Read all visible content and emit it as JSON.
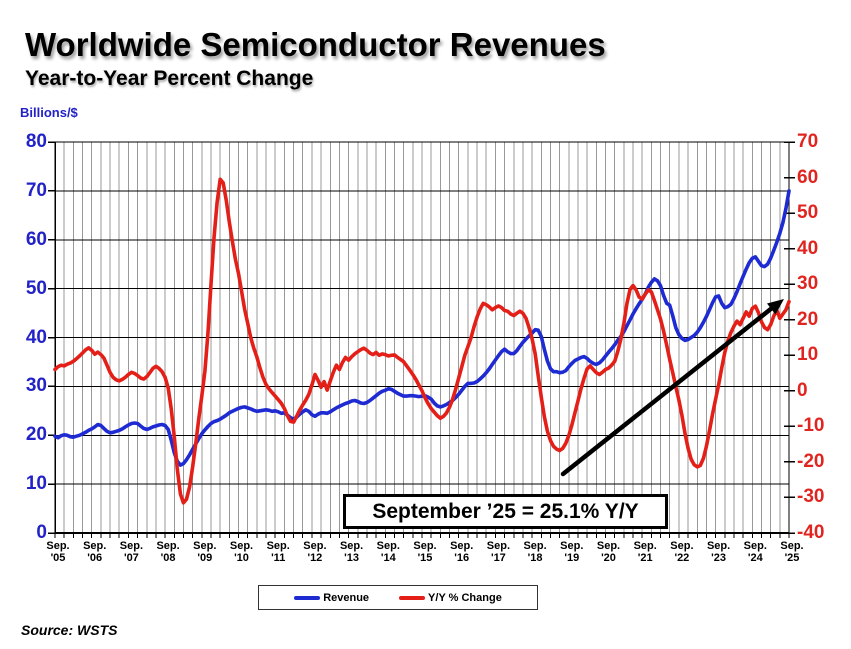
{
  "title": "Worldwide Semiconductor Revenues",
  "subtitle": "Year-to-Year Percent Change",
  "source": "Source: WSTS",
  "left_axis": {
    "label": "Billions/$",
    "color": "#2222c8",
    "ticks": [
      80,
      70,
      60,
      50,
      40,
      30,
      20,
      10,
      0
    ]
  },
  "right_axis": {
    "color": "#e02520",
    "ticks": [
      70,
      60,
      50,
      40,
      30,
      20,
      10,
      0,
      -10,
      -20,
      -30,
      -40
    ]
  },
  "x_axis": {
    "month_label": "Sep.",
    "years": [
      "'05",
      "'06",
      "'07",
      "'08",
      "'09",
      "'10",
      "'11",
      "'12",
      "'13",
      "'14",
      "'15",
      "'16",
      "'17",
      "'18",
      "'19",
      "'20",
      "'21",
      "'22",
      "'23",
      "'24",
      "'25"
    ]
  },
  "annotation": {
    "text": "September ’25 = 25.1% Y/Y"
  },
  "legend": {
    "items": [
      {
        "label": "Revenue",
        "color": "#1e2bd2"
      },
      {
        "label": "Y/Y % Change",
        "color": "#e41f18"
      }
    ]
  },
  "colors": {
    "grid_vertical": "#999999",
    "grid_horizontal": "#000000",
    "arrow": "#000000"
  },
  "chart_data": {
    "type": "line",
    "title": "Worldwide Semiconductor Revenues",
    "subtitle": "Year-to-Year Percent Change",
    "frequency": "monthly",
    "x_start": "2005-09",
    "x_end": "2025-09",
    "left_axis": {
      "label": "Billions/$",
      "range": [
        0,
        80
      ],
      "tick_step": 10
    },
    "right_axis": {
      "label": "Y/Y % Change",
      "range": [
        -40,
        70
      ],
      "tick_step": 10
    },
    "grid": {
      "horizontal": "every 10 (left scale)",
      "vertical": "quarterly"
    },
    "legend_position": "bottom-center",
    "annotations": [
      {
        "type": "callout-box",
        "text": "September ’25 = 25.1% Y/Y"
      },
      {
        "type": "arrow",
        "points_to": "final Y/Y value, Sep 2025 = 25.1%"
      }
    ],
    "series": [
      {
        "name": "Revenue",
        "axis": "left",
        "units": "US$ billions/month",
        "color": "#1e2bd2",
        "values": [
          19.8,
          19.5,
          19.9,
          20.1,
          20.0,
          19.7,
          19.6,
          19.8,
          20.0,
          20.3,
          20.6,
          21.0,
          21.3,
          21.7,
          22.2,
          22.0,
          21.4,
          20.8,
          20.5,
          20.6,
          20.8,
          21.0,
          21.3,
          21.7,
          22.1,
          22.4,
          22.5,
          22.4,
          21.9,
          21.4,
          21.2,
          21.4,
          21.7,
          21.9,
          22.1,
          22.2,
          22.0,
          21.2,
          19.0,
          16.4,
          14.7,
          13.9,
          14.2,
          15.0,
          16.0,
          17.1,
          18.2,
          19.3,
          20.3,
          21.1,
          21.8,
          22.4,
          22.8,
          23.0,
          23.3,
          23.7,
          24.1,
          24.6,
          24.9,
          25.2,
          25.5,
          25.7,
          25.8,
          25.6,
          25.4,
          25.1,
          24.9,
          25.0,
          25.1,
          25.2,
          25.1,
          24.9,
          25.0,
          24.8,
          24.5,
          24.6,
          24.1,
          23.6,
          23.3,
          23.7,
          24.3,
          24.8,
          25.2,
          24.9,
          24.2,
          23.9,
          24.3,
          24.6,
          24.6,
          24.5,
          24.8,
          25.2,
          25.6,
          25.9,
          26.2,
          26.5,
          26.7,
          27.0,
          27.1,
          26.9,
          26.6,
          26.5,
          26.7,
          27.1,
          27.6,
          28.1,
          28.6,
          29.0,
          29.2,
          29.5,
          29.4,
          29.0,
          28.6,
          28.3,
          28.0,
          28.0,
          28.1,
          28.1,
          28.0,
          27.9,
          28.0,
          28.1,
          27.8,
          27.4,
          26.6,
          26.0,
          25.8,
          26.0,
          26.3,
          26.7,
          27.1,
          27.7,
          28.4,
          29.2,
          30.0,
          30.6,
          30.6,
          30.7,
          31.0,
          31.5,
          32.1,
          32.8,
          33.6,
          34.5,
          35.4,
          36.3,
          37.1,
          37.6,
          37.1,
          36.7,
          36.7,
          37.3,
          38.2,
          39.0,
          39.7,
          40.3,
          40.9,
          41.6,
          41.5,
          40.2,
          37.6,
          35.2,
          33.6,
          33.0,
          33.0,
          32.8,
          32.9,
          33.2,
          34.0,
          34.7,
          35.3,
          35.6,
          35.9,
          36.1,
          35.7,
          35.1,
          34.7,
          34.5,
          34.8,
          35.4,
          36.2,
          37.0,
          37.7,
          38.5,
          39.4,
          40.2,
          41.2,
          42.4,
          43.6,
          44.8,
          45.9,
          46.9,
          47.8,
          48.9,
          50.3,
          51.3,
          52.0,
          51.6,
          50.6,
          48.6,
          47.0,
          46.6,
          44.4,
          42.0,
          40.6,
          39.8,
          39.4,
          39.6,
          40.0,
          40.4,
          41.1,
          42.0,
          43.1,
          44.3,
          45.7,
          47.1,
          48.3,
          48.5,
          47.0,
          46.1,
          46.3,
          46.8,
          48.0,
          49.4,
          51.0,
          52.5,
          54.0,
          55.3,
          56.2,
          56.5,
          55.6,
          54.7,
          54.5,
          55.0,
          56.2,
          57.8,
          59.5,
          61.3,
          63.5,
          66.4,
          70.0
        ]
      },
      {
        "name": "Y/Y % Change",
        "axis": "right",
        "units": "percent",
        "color": "#e41f18",
        "values": [
          6.0,
          6.8,
          7.2,
          7.0,
          7.5,
          7.8,
          8.3,
          9.0,
          9.8,
          10.6,
          11.5,
          12.1,
          11.4,
          10.3,
          10.9,
          10.2,
          9.2,
          7.2,
          5.2,
          3.8,
          3.1,
          2.8,
          3.2,
          3.8,
          4.6,
          5.2,
          4.9,
          4.3,
          3.6,
          3.3,
          4.0,
          5.1,
          6.3,
          6.9,
          6.3,
          5.4,
          3.8,
          0.8,
          -5.0,
          -13.0,
          -22.0,
          -29.0,
          -31.5,
          -30.5,
          -27.0,
          -21.5,
          -15.0,
          -8.0,
          -1.5,
          5.5,
          16.0,
          30.0,
          43.0,
          53.0,
          59.5,
          58.5,
          53.5,
          47.5,
          42.0,
          37.0,
          33.0,
          28.0,
          23.0,
          19.0,
          15.0,
          12.0,
          9.5,
          6.5,
          3.8,
          1.8,
          0.5,
          -0.5,
          -1.5,
          -2.5,
          -3.5,
          -5.0,
          -7.0,
          -8.6,
          -8.8,
          -7.2,
          -5.4,
          -4.0,
          -2.6,
          -1.0,
          1.6,
          4.6,
          3.0,
          1.0,
          2.6,
          0.2,
          2.8,
          5.2,
          7.2,
          6.0,
          8.0,
          9.4,
          8.6,
          9.6,
          10.4,
          11.0,
          11.6,
          12.0,
          11.4,
          10.6,
          10.2,
          10.8,
          10.0,
          10.4,
          10.2,
          9.8,
          10.0,
          10.1,
          9.4,
          8.8,
          8.2,
          7.0,
          5.8,
          4.6,
          3.2,
          1.6,
          0.0,
          -2.0,
          -3.6,
          -5.0,
          -6.0,
          -7.0,
          -7.7,
          -7.2,
          -6.2,
          -4.6,
          -2.4,
          0.4,
          3.6,
          6.8,
          10.0,
          12.4,
          14.8,
          18.0,
          20.8,
          23.0,
          24.6,
          24.2,
          23.6,
          22.8,
          23.4,
          23.9,
          23.4,
          22.6,
          22.4,
          21.6,
          21.2,
          21.8,
          22.4,
          21.8,
          20.4,
          17.8,
          14.6,
          10.4,
          4.2,
          -1.8,
          -7.2,
          -11.4,
          -14.0,
          -15.6,
          -16.4,
          -16.8,
          -16.2,
          -14.8,
          -12.6,
          -9.6,
          -6.2,
          -2.8,
          0.6,
          3.6,
          6.2,
          7.0,
          6.0,
          5.1,
          4.6,
          5.2,
          6.0,
          6.4,
          7.2,
          8.3,
          11.0,
          14.5,
          19.0,
          24.5,
          28.5,
          29.6,
          28.4,
          26.4,
          25.8,
          27.2,
          28.4,
          27.8,
          25.4,
          22.8,
          20.2,
          16.8,
          12.8,
          8.8,
          5.0,
          1.2,
          -2.6,
          -7.0,
          -12.0,
          -16.2,
          -19.2,
          -20.8,
          -21.4,
          -21.0,
          -19.0,
          -15.6,
          -11.2,
          -6.6,
          -2.4,
          1.8,
          6.4,
          10.8,
          14.0,
          16.4,
          18.2,
          19.6,
          18.6,
          20.4,
          22.2,
          21.0,
          23.2,
          23.8,
          22.0,
          19.4,
          17.8,
          17.2,
          18.6,
          21.0,
          22.7,
          20.4,
          21.6,
          22.8,
          25.1
        ]
      }
    ]
  }
}
